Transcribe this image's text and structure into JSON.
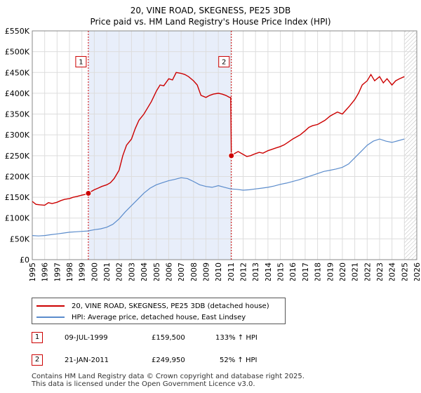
{
  "header": {
    "title": "20, VINE ROAD, SKEGNESS, PE25 3DB",
    "subtitle": "Price paid vs. HM Land Registry's House Price Index (HPI)"
  },
  "legend": {
    "property_label": "20, VINE ROAD, SKEGNESS, PE25 3DB (detached house)",
    "hpi_label": "HPI: Average price, detached house, East Lindsey"
  },
  "sales": [
    {
      "num": "1",
      "date": "09-JUL-1999",
      "price": "£159,500",
      "hpi": "133% ↑ HPI"
    },
    {
      "num": "2",
      "date": "21-JAN-2011",
      "price": "£249,950",
      "hpi": "52% ↑ HPI"
    }
  ],
  "footer": {
    "line1": "Contains HM Land Registry data © Crown copyright and database right 2025.",
    "line2": "This data is licensed under the Open Government Licence v3.0."
  },
  "colors": {
    "property": "#cc0000",
    "hpi": "#5b8ccc",
    "band": "#e8eefa",
    "grid": "#dddddd"
  },
  "chart_data": {
    "type": "line",
    "title": "20, VINE ROAD, SKEGNESS, PE25 3DB",
    "subtitle": "Price paid vs. HM Land Registry's House Price Index (HPI)",
    "xlabel": "",
    "ylabel": "",
    "xlim": [
      1995,
      2026
    ],
    "ylim": [
      0,
      550000
    ],
    "grid": true,
    "legend_position": "bottom",
    "y_ticks": [
      {
        "value": 0,
        "label": "£0"
      },
      {
        "value": 50000,
        "label": "£50K"
      },
      {
        "value": 100000,
        "label": "£100K"
      },
      {
        "value": 150000,
        "label": "£150K"
      },
      {
        "value": 200000,
        "label": "£200K"
      },
      {
        "value": 250000,
        "label": "£250K"
      },
      {
        "value": 300000,
        "label": "£300K"
      },
      {
        "value": 350000,
        "label": "£350K"
      },
      {
        "value": 400000,
        "label": "£400K"
      },
      {
        "value": 450000,
        "label": "£450K"
      },
      {
        "value": 500000,
        "label": "£500K"
      },
      {
        "value": 550000,
        "label": "£550K"
      }
    ],
    "x_ticks": [
      "1995",
      "1996",
      "1997",
      "1998",
      "1999",
      "2000",
      "2001",
      "2002",
      "2003",
      "2004",
      "2005",
      "2006",
      "2007",
      "2008",
      "2009",
      "2010",
      "2011",
      "2012",
      "2013",
      "2014",
      "2015",
      "2016",
      "2017",
      "2018",
      "2019",
      "2020",
      "2021",
      "2022",
      "2023",
      "2024",
      "2025",
      "2026"
    ],
    "shaded_period": {
      "start": 1999.52,
      "end": 2011.05
    },
    "forecast_start": 2025.0,
    "sale_markers": [
      {
        "label": "1",
        "x": 1999.52,
        "y": 159500
      },
      {
        "label": "2",
        "x": 2011.05,
        "y": 249950
      }
    ],
    "series": [
      {
        "name": "20, VINE ROAD, SKEGNESS, PE25 3DB (detached house)",
        "color": "#cc0000",
        "x": [
          1995.0,
          1995.3,
          1995.6,
          1996.0,
          1996.3,
          1996.6,
          1997.0,
          1997.3,
          1997.6,
          1998.0,
          1998.3,
          1998.6,
          1999.0,
          1999.3,
          1999.52,
          1999.7,
          2000.0,
          2000.3,
          2000.6,
          2001.0,
          2001.3,
          2001.6,
          2002.0,
          2002.3,
          2002.6,
          2003.0,
          2003.3,
          2003.6,
          2004.0,
          2004.3,
          2004.6,
          2005.0,
          2005.3,
          2005.6,
          2006.0,
          2006.3,
          2006.6,
          2007.0,
          2007.3,
          2007.6,
          2008.0,
          2008.3,
          2008.6,
          2009.0,
          2009.3,
          2009.6,
          2010.0,
          2010.3,
          2010.6,
          2010.9,
          2011.0,
          2011.05,
          2011.3,
          2011.6,
          2012.0,
          2012.3,
          2012.6,
          2013.0,
          2013.3,
          2013.6,
          2014.0,
          2014.3,
          2014.6,
          2015.0,
          2015.3,
          2015.6,
          2016.0,
          2016.3,
          2016.6,
          2017.0,
          2017.3,
          2017.6,
          2018.0,
          2018.3,
          2018.6,
          2019.0,
          2019.3,
          2019.6,
          2020.0,
          2020.3,
          2020.6,
          2021.0,
          2021.3,
          2021.6,
          2022.0,
          2022.3,
          2022.6,
          2023.0,
          2023.3,
          2023.6,
          2024.0,
          2024.3,
          2024.6,
          2025.0
        ],
        "y": [
          140000,
          133000,
          132000,
          131000,
          137000,
          135000,
          138000,
          142000,
          145000,
          147000,
          150000,
          152000,
          155000,
          157000,
          159500,
          163000,
          168000,
          172000,
          176000,
          180000,
          185000,
          195000,
          215000,
          250000,
          275000,
          290000,
          315000,
          335000,
          350000,
          365000,
          380000,
          405000,
          420000,
          418000,
          435000,
          432000,
          450000,
          448000,
          445000,
          440000,
          430000,
          420000,
          395000,
          390000,
          395000,
          398000,
          400000,
          398000,
          395000,
          390000,
          390000,
          249950,
          255000,
          260000,
          253000,
          248000,
          250000,
          255000,
          258000,
          256000,
          262000,
          265000,
          268000,
          272000,
          276000,
          282000,
          290000,
          295000,
          300000,
          310000,
          318000,
          322000,
          325000,
          330000,
          335000,
          345000,
          350000,
          355000,
          350000,
          360000,
          370000,
          385000,
          400000,
          420000,
          430000,
          445000,
          430000,
          440000,
          425000,
          435000,
          420000,
          430000,
          435000,
          440000
        ]
      },
      {
        "name": "HPI: Average price, detached house, East Lindsey",
        "color": "#5b8ccc",
        "x": [
          1995.0,
          1995.5,
          1996.0,
          1996.5,
          1997.0,
          1997.5,
          1998.0,
          1998.5,
          1999.0,
          1999.5,
          2000.0,
          2000.5,
          2001.0,
          2001.5,
          2002.0,
          2002.5,
          2003.0,
          2003.5,
          2004.0,
          2004.5,
          2005.0,
          2005.5,
          2006.0,
          2006.5,
          2007.0,
          2007.5,
          2008.0,
          2008.5,
          2009.0,
          2009.5,
          2010.0,
          2010.5,
          2011.0,
          2011.5,
          2012.0,
          2012.5,
          2013.0,
          2013.5,
          2014.0,
          2014.5,
          2015.0,
          2015.5,
          2016.0,
          2016.5,
          2017.0,
          2017.5,
          2018.0,
          2018.5,
          2019.0,
          2019.5,
          2020.0,
          2020.5,
          2021.0,
          2021.5,
          2022.0,
          2022.5,
          2023.0,
          2023.5,
          2024.0,
          2024.5,
          2025.0
        ],
        "y": [
          58000,
          57000,
          58000,
          60000,
          62000,
          64000,
          66000,
          67000,
          68000,
          69000,
          72000,
          74000,
          78000,
          85000,
          98000,
          115000,
          130000,
          145000,
          160000,
          172000,
          180000,
          185000,
          190000,
          193000,
          197000,
          195000,
          188000,
          180000,
          176000,
          174000,
          178000,
          174000,
          170000,
          169000,
          167000,
          168000,
          170000,
          172000,
          174000,
          177000,
          181000,
          184000,
          188000,
          192000,
          197000,
          202000,
          207000,
          212000,
          215000,
          218000,
          222000,
          230000,
          245000,
          260000,
          275000,
          285000,
          290000,
          285000,
          282000,
          286000,
          290000
        ]
      }
    ]
  }
}
